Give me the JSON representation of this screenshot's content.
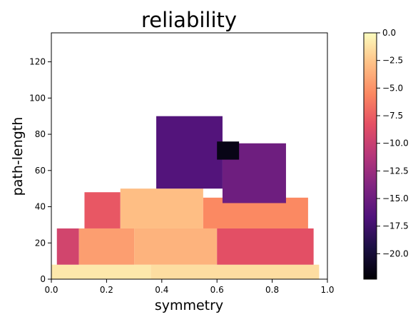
{
  "chart_data": {
    "type": "heatmap",
    "title": "reliability",
    "xlabel": "symmetry",
    "ylabel": "path-length",
    "xlim": [
      0.0,
      1.0
    ],
    "ylim": [
      0,
      136
    ],
    "xticks": [
      "0.0",
      "0.2",
      "0.4",
      "0.6",
      "0.8",
      "1.0"
    ],
    "xtick_values": [
      0.0,
      0.2,
      0.4,
      0.6,
      0.8,
      1.0
    ],
    "yticks": [
      "0",
      "20",
      "40",
      "60",
      "80",
      "100",
      "120"
    ],
    "ytick_values": [
      0,
      20,
      40,
      60,
      80,
      100,
      120
    ],
    "colormap": "magma",
    "colorbar": {
      "range": [
        -22.3,
        0.0
      ],
      "ticks": [
        "0.0",
        "−2.5",
        "−5.0",
        "−7.5",
        "−10.0",
        "−12.5",
        "−15.0",
        "−17.5",
        "−20.0"
      ],
      "tick_values": [
        0.0,
        -2.5,
        -5.0,
        -7.5,
        -10.0,
        -12.5,
        -15.0,
        -17.5,
        -20.0
      ]
    },
    "grid": false,
    "regions": [
      {
        "x": [
          0.0,
          0.36
        ],
        "y": [
          0,
          8
        ],
        "value": -1.0
      },
      {
        "x": [
          0.36,
          0.97
        ],
        "y": [
          0,
          8
        ],
        "value": -1.5
      },
      {
        "x": [
          0.02,
          0.1
        ],
        "y": [
          8,
          28
        ],
        "value": -9.5
      },
      {
        "x": [
          0.1,
          0.3
        ],
        "y": [
          8,
          28
        ],
        "value": -4.5
      },
      {
        "x": [
          0.3,
          0.6
        ],
        "y": [
          8,
          28
        ],
        "value": -3.5
      },
      {
        "x": [
          0.6,
          0.95
        ],
        "y": [
          8,
          28
        ],
        "value": -8.5
      },
      {
        "x": [
          0.12,
          0.25
        ],
        "y": [
          28,
          48
        ],
        "value": -8.0
      },
      {
        "x": [
          0.25,
          0.55
        ],
        "y": [
          28,
          50
        ],
        "value": -3.0
      },
      {
        "x": [
          0.55,
          0.93
        ],
        "y": [
          28,
          45
        ],
        "value": -5.5
      },
      {
        "x": [
          0.38,
          0.62
        ],
        "y": [
          50,
          90
        ],
        "value": -16.5
      },
      {
        "x": [
          0.62,
          0.85
        ],
        "y": [
          42,
          75
        ],
        "value": -15.0
      },
      {
        "x": [
          0.6,
          0.68
        ],
        "y": [
          66,
          76
        ],
        "value": -21.5
      }
    ]
  }
}
